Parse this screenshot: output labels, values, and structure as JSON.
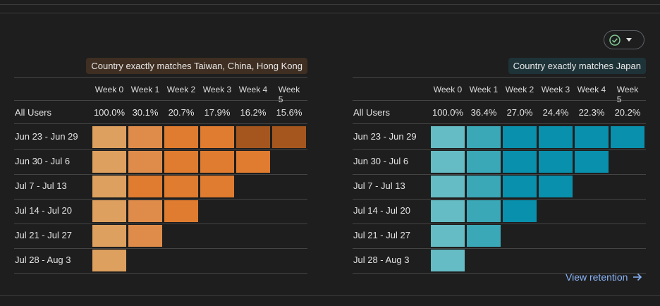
{
  "columns": [
    "Week 0",
    "Week 1",
    "Week 2",
    "Week 3",
    "Week 4",
    "Week 5"
  ],
  "row_labels": [
    "Jun 23 - Jun 29",
    "Jun 30 - Jul 6",
    "Jul 7 - Jul 13",
    "Jul 14 - Jul 20",
    "Jul 21 - Jul 27",
    "Jul 28 - Aug 3"
  ],
  "all_users_label": "All Users",
  "panels": [
    {
      "segment": "Country exactly matches Taiwan, China, Hong Kong",
      "all_users": [
        "100.0%",
        "30.1%",
        "20.7%",
        "17.9%",
        "16.2%",
        "15.6%"
      ],
      "cell_colors": [
        [
          "#dda05f",
          "#df8c4b",
          "#df7c30",
          "#df7c30",
          "#a5561e",
          "#a5561e"
        ],
        [
          "#dda05f",
          "#df8c4b",
          "#df7c30",
          "#df7c30",
          "#df7c30"
        ],
        [
          "#dda05f",
          "#df7c30",
          "#df7c30",
          "#df7c30"
        ],
        [
          "#dda05f",
          "#df8c4b",
          "#df7c30"
        ],
        [
          "#dda05f",
          "#df8c4b"
        ],
        [
          "#dda05f"
        ]
      ]
    },
    {
      "segment": "Country exactly matches Japan",
      "all_users": [
        "100.0%",
        "36.4%",
        "27.0%",
        "24.4%",
        "22.3%",
        "20.2%"
      ],
      "cell_colors": [
        [
          "#65bcc4",
          "#3aa8b6",
          "#0990ad",
          "#0990ad",
          "#0990ad",
          "#0990ad"
        ],
        [
          "#65bcc4",
          "#3aa8b6",
          "#0990ad",
          "#0990ad",
          "#0990ad"
        ],
        [
          "#65bcc4",
          "#3aa8b6",
          "#0990ad",
          "#0990ad"
        ],
        [
          "#65bcc4",
          "#3aa8b6",
          "#0990ad"
        ],
        [
          "#65bcc4",
          "#3aa8b6"
        ],
        [
          "#65bcc4"
        ]
      ]
    }
  ],
  "view_retention_label": "View retention",
  "icons": {
    "status": "check-circle-icon",
    "dropdown": "caret-down-icon",
    "link_arrow": "arrow-right-icon"
  },
  "colors": {
    "check": "#81c995",
    "link": "#8ab4f8"
  }
}
